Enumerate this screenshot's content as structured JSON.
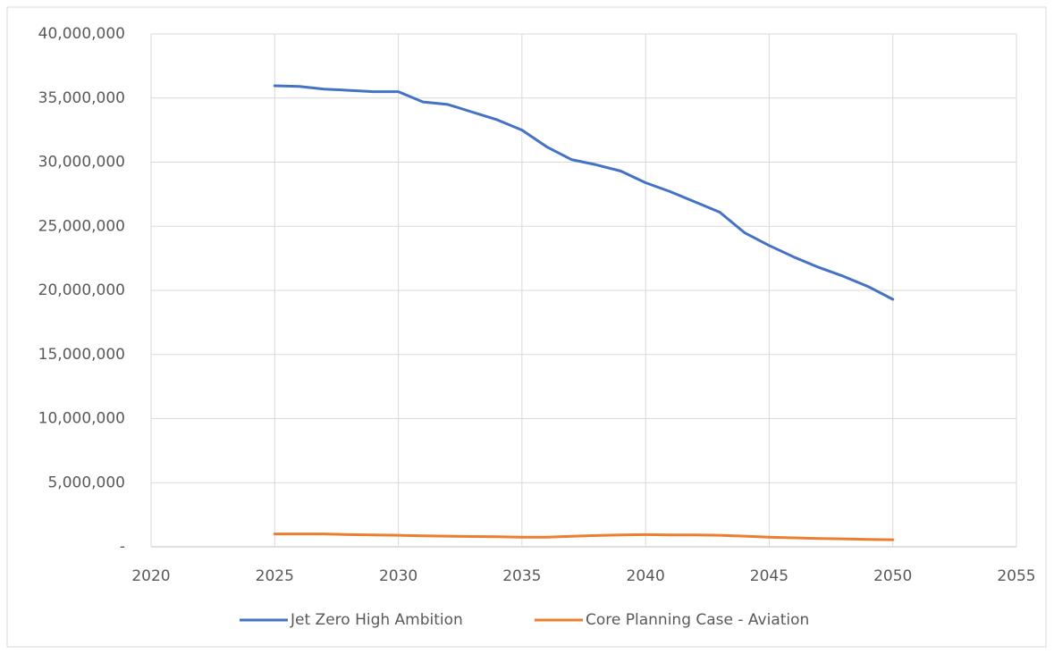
{
  "chart_data": {
    "type": "line",
    "x": [
      2025,
      2026,
      2027,
      2028,
      2029,
      2030,
      2031,
      2032,
      2033,
      2034,
      2035,
      2036,
      2037,
      2038,
      2039,
      2040,
      2041,
      2042,
      2043,
      2044,
      2045,
      2046,
      2047,
      2048,
      2049,
      2050
    ],
    "series": [
      {
        "name": "Jet Zero High Ambition",
        "color": "#4472c4",
        "values": [
          35960000,
          35900000,
          35700000,
          35600000,
          35500000,
          35500000,
          34700000,
          34500000,
          33900000,
          33300000,
          32500000,
          31200000,
          30200000,
          29800000,
          29300000,
          28400000,
          27700000,
          26900000,
          26100000,
          24500000,
          23500000,
          22600000,
          21800000,
          21100000,
          20300000,
          19300000
        ]
      },
      {
        "name": "Core Planning Case - Aviation",
        "color": "#ed7d31",
        "values": [
          1000000,
          1000000,
          1000000,
          950000,
          920000,
          900000,
          850000,
          830000,
          800000,
          780000,
          750000,
          750000,
          820000,
          880000,
          930000,
          950000,
          930000,
          920000,
          900000,
          830000,
          750000,
          700000,
          650000,
          620000,
          580000,
          550000
        ]
      }
    ],
    "xlim": [
      2020,
      2055
    ],
    "xticks": [
      2020,
      2025,
      2030,
      2035,
      2040,
      2045,
      2050,
      2055
    ],
    "ylim": [
      0,
      40000000
    ],
    "yticks": [
      {
        "value": 0,
        "label": "-"
      },
      {
        "value": 5000000,
        "label": "5,000,000"
      },
      {
        "value": 10000000,
        "label": "10,000,000"
      },
      {
        "value": 15000000,
        "label": "15,000,000"
      },
      {
        "value": 20000000,
        "label": "20,000,000"
      },
      {
        "value": 25000000,
        "label": "25,000,000"
      },
      {
        "value": 30000000,
        "label": "30,000,000"
      },
      {
        "value": 35000000,
        "label": "35,000,000"
      },
      {
        "value": 40000000,
        "label": "40,000,000"
      }
    ],
    "grid": true,
    "legend": "bottom"
  }
}
